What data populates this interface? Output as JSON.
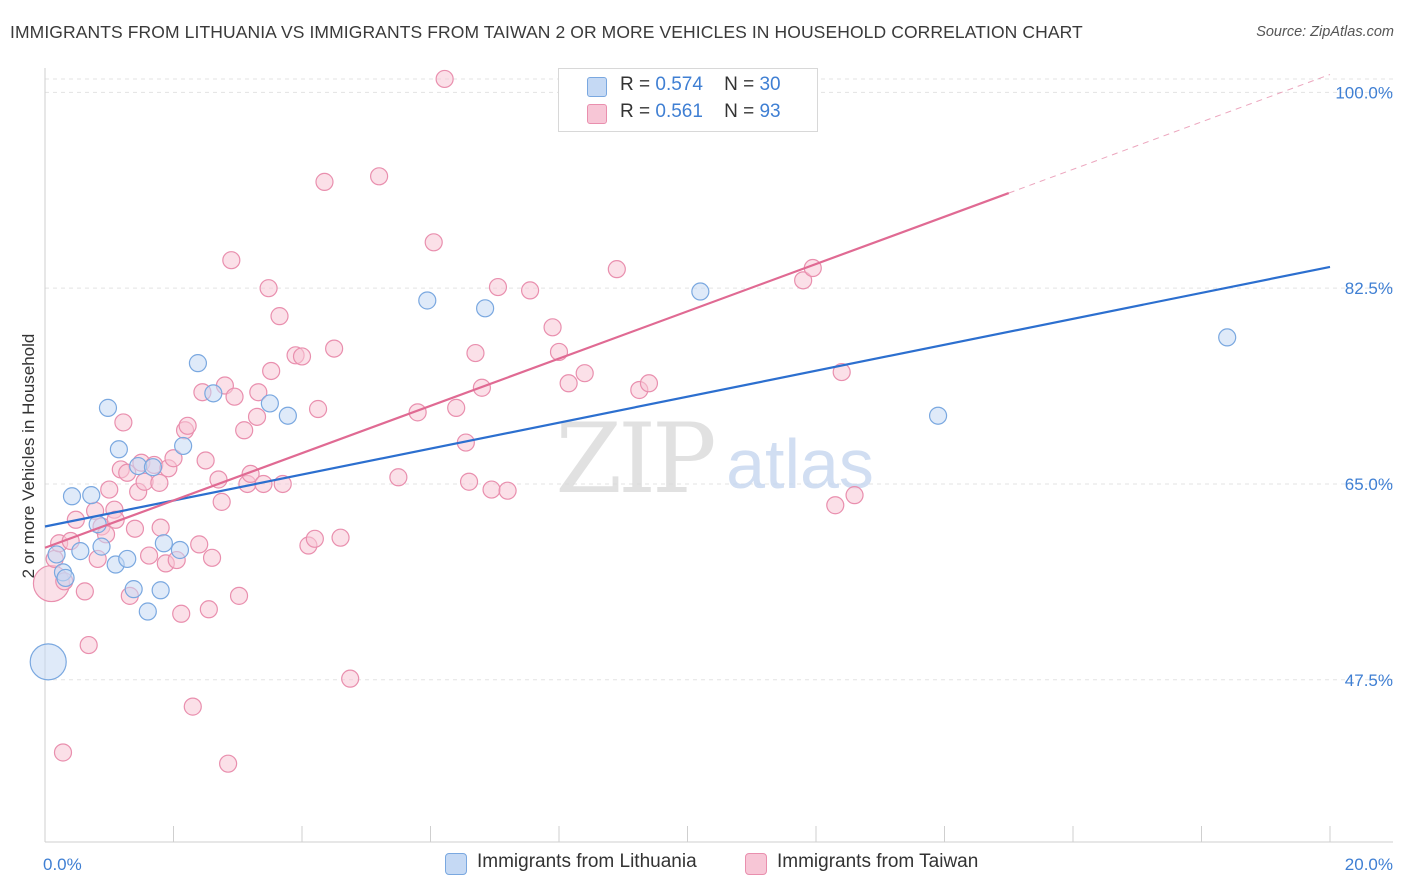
{
  "title": "IMMIGRANTS FROM LITHUANIA VS IMMIGRANTS FROM TAIWAN 2 OR MORE VEHICLES IN HOUSEHOLD CORRELATION CHART",
  "source": "Source: ZipAtlas.com",
  "watermark": {
    "zip": "ZIP",
    "atlas": "atlas"
  },
  "legend": {
    "r_label": "R =",
    "n_label": "N =",
    "series": [
      {
        "r": "0.574",
        "n": "30"
      },
      {
        "r": "0.561",
        "n": "93"
      }
    ]
  },
  "colors": {
    "lithuania_fill": "#c5d9f4",
    "lithuania_stroke": "#7aa8e0",
    "lithuania_line": "#2c6fcf",
    "taiwan_fill": "#f7c6d6",
    "taiwan_stroke": "#e98fae",
    "taiwan_line": "#e06a93",
    "tick": "#3f7fd3"
  },
  "chart_data": {
    "type": "scatter",
    "title": "IMMIGRANTS FROM LITHUANIA VS IMMIGRANTS FROM TAIWAN 2 OR MORE VEHICLES IN HOUSEHOLD CORRELATION CHART",
    "xlabel": "",
    "ylabel": "2 or more Vehicles in Household",
    "xlim": [
      0,
      20
    ],
    "ylim": [
      33,
      102
    ],
    "x_tick_labels": [
      "0.0%",
      "20.0%"
    ],
    "y_ticks": [
      {
        "value": 47.5,
        "label": "47.5%"
      },
      {
        "value": 65.0,
        "label": "65.0%"
      },
      {
        "value": 82.5,
        "label": "82.5%"
      },
      {
        "value": 100.0,
        "label": "100.0%"
      }
    ],
    "grid": true,
    "series": [
      {
        "name": "Immigrants from Lithuania",
        "trend": {
          "x0": 0.0,
          "y0": 61.2,
          "x1": 20.0,
          "y1": 84.4
        },
        "points": [
          {
            "x": 0.05,
            "y": 49.1,
            "size": "large"
          },
          {
            "x": 0.18,
            "y": 58.7
          },
          {
            "x": 0.28,
            "y": 57.1
          },
          {
            "x": 0.32,
            "y": 56.6
          },
          {
            "x": 0.42,
            "y": 63.9
          },
          {
            "x": 0.55,
            "y": 59.0
          },
          {
            "x": 0.72,
            "y": 64.0
          },
          {
            "x": 0.82,
            "y": 61.4
          },
          {
            "x": 0.88,
            "y": 59.4
          },
          {
            "x": 0.98,
            "y": 71.8
          },
          {
            "x": 1.15,
            "y": 68.1
          },
          {
            "x": 1.1,
            "y": 57.8
          },
          {
            "x": 1.28,
            "y": 58.3
          },
          {
            "x": 1.38,
            "y": 55.6
          },
          {
            "x": 1.45,
            "y": 66.6
          },
          {
            "x": 1.6,
            "y": 53.6
          },
          {
            "x": 1.68,
            "y": 66.5
          },
          {
            "x": 1.85,
            "y": 59.7
          },
          {
            "x": 1.8,
            "y": 55.5
          },
          {
            "x": 2.1,
            "y": 59.1
          },
          {
            "x": 2.15,
            "y": 68.4
          },
          {
            "x": 2.38,
            "y": 75.8
          },
          {
            "x": 2.62,
            "y": 73.1
          },
          {
            "x": 3.5,
            "y": 72.2
          },
          {
            "x": 3.78,
            "y": 71.1
          },
          {
            "x": 5.95,
            "y": 81.4
          },
          {
            "x": 6.85,
            "y": 80.7
          },
          {
            "x": 10.2,
            "y": 82.2
          },
          {
            "x": 13.9,
            "y": 71.1
          },
          {
            "x": 18.4,
            "y": 78.1
          }
        ]
      },
      {
        "name": "Immigrants from Taiwan",
        "trend": {
          "x0": 0.0,
          "y0": 59.3,
          "x1": 15.0,
          "y1": 91.0,
          "dashed_to_x": 20.0,
          "dashed_to_y": 101.6
        },
        "points": [
          {
            "x": 0.1,
            "y": 56.1,
            "size": "large"
          },
          {
            "x": 0.15,
            "y": 58.3
          },
          {
            "x": 0.22,
            "y": 59.7
          },
          {
            "x": 0.3,
            "y": 56.3
          },
          {
            "x": 0.28,
            "y": 41.0
          },
          {
            "x": 0.4,
            "y": 59.9
          },
          {
            "x": 0.48,
            "y": 61.8
          },
          {
            "x": 0.62,
            "y": 55.4
          },
          {
            "x": 0.68,
            "y": 50.6
          },
          {
            "x": 0.78,
            "y": 62.6
          },
          {
            "x": 0.82,
            "y": 58.3
          },
          {
            "x": 0.88,
            "y": 61.2
          },
          {
            "x": 0.95,
            "y": 60.5
          },
          {
            "x": 1.0,
            "y": 64.5
          },
          {
            "x": 1.08,
            "y": 62.7
          },
          {
            "x": 1.1,
            "y": 61.8
          },
          {
            "x": 1.18,
            "y": 66.3
          },
          {
            "x": 1.22,
            "y": 70.5
          },
          {
            "x": 1.28,
            "y": 66.0
          },
          {
            "x": 1.32,
            "y": 55.0
          },
          {
            "x": 1.4,
            "y": 61.0
          },
          {
            "x": 1.45,
            "y": 64.3
          },
          {
            "x": 1.5,
            "y": 66.9
          },
          {
            "x": 1.55,
            "y": 65.2
          },
          {
            "x": 1.62,
            "y": 58.6
          },
          {
            "x": 1.7,
            "y": 66.7
          },
          {
            "x": 1.78,
            "y": 65.1
          },
          {
            "x": 1.8,
            "y": 61.1
          },
          {
            "x": 1.88,
            "y": 57.9
          },
          {
            "x": 1.92,
            "y": 66.4
          },
          {
            "x": 2.0,
            "y": 67.3
          },
          {
            "x": 2.05,
            "y": 58.2
          },
          {
            "x": 2.12,
            "y": 53.4
          },
          {
            "x": 2.18,
            "y": 69.8
          },
          {
            "x": 2.22,
            "y": 70.2
          },
          {
            "x": 2.3,
            "y": 45.1
          },
          {
            "x": 2.4,
            "y": 59.6
          },
          {
            "x": 2.45,
            "y": 73.2
          },
          {
            "x": 2.5,
            "y": 67.1
          },
          {
            "x": 2.55,
            "y": 53.8
          },
          {
            "x": 2.6,
            "y": 58.4
          },
          {
            "x": 2.7,
            "y": 65.4
          },
          {
            "x": 2.75,
            "y": 63.4
          },
          {
            "x": 2.8,
            "y": 73.8
          },
          {
            "x": 2.85,
            "y": 40.0
          },
          {
            "x": 2.9,
            "y": 85.0
          },
          {
            "x": 2.95,
            "y": 72.8
          },
          {
            "x": 3.02,
            "y": 55.0
          },
          {
            "x": 3.1,
            "y": 69.8
          },
          {
            "x": 3.15,
            "y": 65.0
          },
          {
            "x": 3.2,
            "y": 65.9
          },
          {
            "x": 3.3,
            "y": 71.0
          },
          {
            "x": 3.32,
            "y": 73.2
          },
          {
            "x": 3.4,
            "y": 65.0
          },
          {
            "x": 3.48,
            "y": 82.5
          },
          {
            "x": 3.52,
            "y": 75.1
          },
          {
            "x": 3.65,
            "y": 80.0
          },
          {
            "x": 3.7,
            "y": 65.0
          },
          {
            "x": 3.9,
            "y": 76.5
          },
          {
            "x": 4.0,
            "y": 76.4
          },
          {
            "x": 4.1,
            "y": 59.5
          },
          {
            "x": 4.2,
            "y": 60.1
          },
          {
            "x": 4.25,
            "y": 71.7
          },
          {
            "x": 4.35,
            "y": 92.0
          },
          {
            "x": 4.5,
            "y": 77.1
          },
          {
            "x": 4.6,
            "y": 60.2
          },
          {
            "x": 4.75,
            "y": 47.6
          },
          {
            "x": 5.2,
            "y": 92.5
          },
          {
            "x": 5.5,
            "y": 65.6
          },
          {
            "x": 5.8,
            "y": 71.4
          },
          {
            "x": 6.05,
            "y": 86.6
          },
          {
            "x": 6.22,
            "y": 101.2
          },
          {
            "x": 6.4,
            "y": 71.8
          },
          {
            "x": 6.55,
            "y": 68.7
          },
          {
            "x": 6.6,
            "y": 65.2
          },
          {
            "x": 6.7,
            "y": 76.7
          },
          {
            "x": 6.8,
            "y": 73.6
          },
          {
            "x": 6.95,
            "y": 64.5
          },
          {
            "x": 7.05,
            "y": 82.6
          },
          {
            "x": 7.2,
            "y": 64.4
          },
          {
            "x": 7.55,
            "y": 82.3
          },
          {
            "x": 7.9,
            "y": 79.0
          },
          {
            "x": 8.0,
            "y": 76.8
          },
          {
            "x": 8.15,
            "y": 74.0
          },
          {
            "x": 8.4,
            "y": 74.9
          },
          {
            "x": 8.9,
            "y": 84.2
          },
          {
            "x": 9.25,
            "y": 73.4
          },
          {
            "x": 9.4,
            "y": 74.0
          },
          {
            "x": 11.8,
            "y": 83.2
          },
          {
            "x": 11.95,
            "y": 84.3
          },
          {
            "x": 12.3,
            "y": 63.1
          },
          {
            "x": 12.4,
            "y": 75.0
          },
          {
            "x": 12.6,
            "y": 64.0
          }
        ]
      }
    ]
  }
}
